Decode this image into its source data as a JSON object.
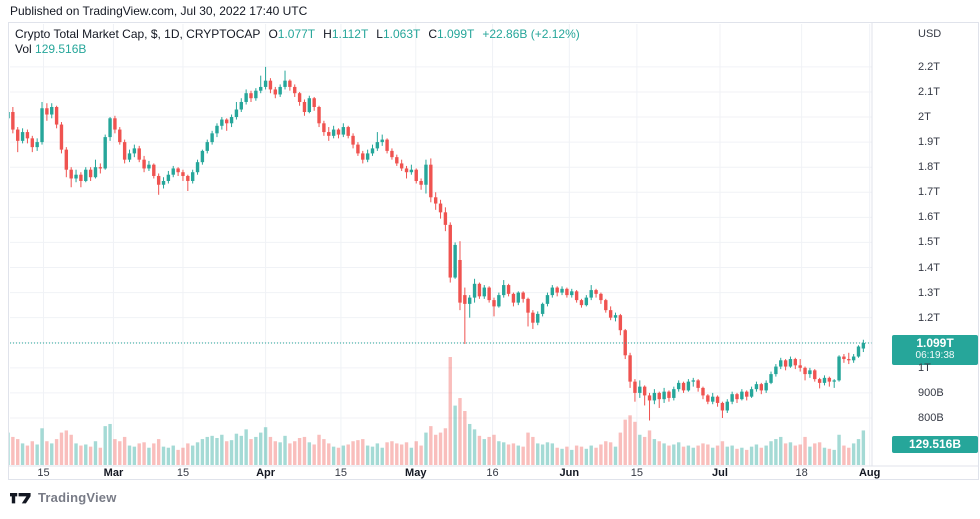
{
  "page": {
    "published_line": "Published on TradingView.com, Jul 30, 2022 17:40 UTC",
    "watermark_text": "TradingView"
  },
  "legend": {
    "title": "Crypto Total Market Cap, $, 1D, CRYPTOCAP",
    "o_label": "O",
    "o": "1.077T",
    "h_label": "H",
    "h": "1.112T",
    "l_label": "L",
    "l": "1.063T",
    "c_label": "C",
    "c": "1.099T",
    "change": "+22.86B (+2.12%)",
    "vol_label": "Vol",
    "vol_value": "129.516B"
  },
  "badges": {
    "price": "1.099T",
    "countdown": "06:19:38",
    "volume": "129.516B"
  },
  "colors": {
    "up": "#26a69a",
    "down": "#ef5350",
    "vol_up": "rgba(38,166,154,0.42)",
    "vol_down": "rgba(239,83,80,0.38)",
    "grid": "#f0f2f6",
    "axis_text": "#363a45",
    "dark_text": "#131722",
    "badge": "#26a69a",
    "dotted_line": "#26a69a",
    "border": "#e0e3eb",
    "watermark_gray": "#787b86"
  },
  "chart_data": {
    "type": "candlestick",
    "title": "Crypto Total Market Cap",
    "currency": "$",
    "interval": "1D",
    "symbol": "CRYPTOCAP",
    "units": "billions of USD",
    "last_candle": {
      "open": "1.077T",
      "high": "1.112T",
      "low": "1.063T",
      "close": "1.099T",
      "change": "+22.86B (+2.12%)",
      "volume": "129.516B"
    },
    "current_price": 1099,
    "countdown": "06:19:38",
    "grid": true,
    "y_axis": {
      "title": "USD",
      "range_visible": [
        760,
        2310
      ],
      "ticks": [
        {
          "label": "2.2T",
          "value": 2200
        },
        {
          "label": "2.1T",
          "value": 2100
        },
        {
          "label": "2T",
          "value": 2000
        },
        {
          "label": "1.9T",
          "value": 1900
        },
        {
          "label": "1.8T",
          "value": 1800
        },
        {
          "label": "1.7T",
          "value": 1700
        },
        {
          "label": "1.6T",
          "value": 1600
        },
        {
          "label": "1.5T",
          "value": 1500
        },
        {
          "label": "1.4T",
          "value": 1400
        },
        {
          "label": "1.3T",
          "value": 1300
        },
        {
          "label": "1.2T",
          "value": 1200
        },
        {
          "label": "",
          "value": 1100
        },
        {
          "label": "1T",
          "value": 1000
        },
        {
          "label": "900B",
          "value": 900
        },
        {
          "label": "800B",
          "value": 800
        }
      ]
    },
    "x_axis": {
      "ticks": [
        {
          "label": "15",
          "i": 7.3,
          "bold": false
        },
        {
          "label": "Mar",
          "i": 21.7,
          "bold": true
        },
        {
          "label": "15",
          "i": 36,
          "bold": false
        },
        {
          "label": "Apr",
          "i": 53,
          "bold": true
        },
        {
          "label": "15",
          "i": 68.5,
          "bold": false
        },
        {
          "label": "May",
          "i": 83.9,
          "bold": true
        },
        {
          "label": "16",
          "i": 99.7,
          "bold": false
        },
        {
          "label": "Jun",
          "i": 115.5,
          "bold": true
        },
        {
          "label": "15",
          "i": 129.4,
          "bold": false
        },
        {
          "label": "Jul",
          "i": 146.5,
          "bold": true
        },
        {
          "label": "18",
          "i": 163.3,
          "bold": false
        },
        {
          "label": "Aug",
          "i": 177.3,
          "bold": true
        }
      ]
    },
    "volume_scale_note": "v is relative bar height, 100 = tallest spike",
    "candles": [
      [
        1995,
        2065,
        1950,
        2020,
        30
      ],
      [
        2020,
        2040,
        1935,
        1950,
        26
      ],
      [
        1950,
        1960,
        1860,
        1905,
        24
      ],
      [
        1905,
        1955,
        1895,
        1940,
        20
      ],
      [
        1940,
        1950,
        1895,
        1915,
        18
      ],
      [
        1915,
        1925,
        1860,
        1880,
        22
      ],
      [
        1880,
        1915,
        1865,
        1900,
        19
      ],
      [
        1900,
        2060,
        1890,
        2035,
        34
      ],
      [
        2035,
        2055,
        1985,
        2010,
        22
      ],
      [
        2010,
        2055,
        1995,
        2040,
        20
      ],
      [
        2040,
        2045,
        1955,
        1970,
        24
      ],
      [
        1970,
        1980,
        1855,
        1870,
        30
      ],
      [
        1870,
        1880,
        1760,
        1790,
        32
      ],
      [
        1790,
        1800,
        1720,
        1755,
        28
      ],
      [
        1755,
        1790,
        1740,
        1770,
        20
      ],
      [
        1770,
        1780,
        1720,
        1745,
        18
      ],
      [
        1745,
        1800,
        1740,
        1790,
        19
      ],
      [
        1790,
        1800,
        1745,
        1760,
        17
      ],
      [
        1760,
        1830,
        1755,
        1800,
        22
      ],
      [
        1800,
        1815,
        1775,
        1795,
        16
      ],
      [
        1795,
        1930,
        1790,
        1920,
        36
      ],
      [
        1920,
        2000,
        1905,
        1995,
        38
      ],
      [
        1995,
        2005,
        1935,
        1950,
        24
      ],
      [
        1950,
        1960,
        1890,
        1900,
        22
      ],
      [
        1900,
        1910,
        1815,
        1830,
        26
      ],
      [
        1830,
        1870,
        1820,
        1855,
        18
      ],
      [
        1855,
        1890,
        1840,
        1875,
        17
      ],
      [
        1875,
        1885,
        1820,
        1830,
        20
      ],
      [
        1830,
        1845,
        1780,
        1795,
        21
      ],
      [
        1795,
        1825,
        1785,
        1810,
        16
      ],
      [
        1810,
        1815,
        1755,
        1765,
        20
      ],
      [
        1765,
        1775,
        1690,
        1730,
        24
      ],
      [
        1730,
        1760,
        1715,
        1745,
        17
      ],
      [
        1745,
        1785,
        1735,
        1770,
        16
      ],
      [
        1770,
        1805,
        1760,
        1795,
        18
      ],
      [
        1795,
        1800,
        1765,
        1780,
        14
      ],
      [
        1780,
        1790,
        1745,
        1765,
        16
      ],
      [
        1765,
        1770,
        1705,
        1745,
        20
      ],
      [
        1745,
        1790,
        1735,
        1780,
        18
      ],
      [
        1780,
        1830,
        1770,
        1820,
        21
      ],
      [
        1820,
        1870,
        1810,
        1865,
        24
      ],
      [
        1865,
        1910,
        1855,
        1900,
        26
      ],
      [
        1900,
        1945,
        1890,
        1935,
        27
      ],
      [
        1935,
        1975,
        1920,
        1965,
        25
      ],
      [
        1965,
        2000,
        1950,
        1990,
        28
      ],
      [
        1990,
        1995,
        1945,
        1975,
        22
      ],
      [
        1975,
        2010,
        1960,
        2000,
        23
      ],
      [
        2000,
        2060,
        1990,
        2030,
        29
      ],
      [
        2030,
        2075,
        2020,
        2060,
        27
      ],
      [
        2060,
        2110,
        2050,
        2095,
        33
      ],
      [
        2095,
        2105,
        2060,
        2075,
        24
      ],
      [
        2075,
        2115,
        2065,
        2105,
        26
      ],
      [
        2105,
        2165,
        2095,
        2120,
        30
      ],
      [
        2120,
        2200,
        2110,
        2145,
        35
      ],
      [
        2145,
        2155,
        2095,
        2110,
        26
      ],
      [
        2110,
        2120,
        2075,
        2090,
        22
      ],
      [
        2090,
        2130,
        2080,
        2120,
        21
      ],
      [
        2120,
        2185,
        2110,
        2145,
        27
      ],
      [
        2145,
        2150,
        2105,
        2120,
        20
      ],
      [
        2120,
        2130,
        2080,
        2095,
        22
      ],
      [
        2095,
        2100,
        2045,
        2060,
        25
      ],
      [
        2060,
        2070,
        2005,
        2020,
        26
      ],
      [
        2020,
        2085,
        2015,
        2075,
        21
      ],
      [
        2075,
        2080,
        2025,
        2040,
        19
      ],
      [
        2040,
        2045,
        1960,
        1975,
        28
      ],
      [
        1975,
        1985,
        1925,
        1940,
        24
      ],
      [
        1940,
        1960,
        1905,
        1925,
        20
      ],
      [
        1925,
        1965,
        1915,
        1950,
        17
      ],
      [
        1950,
        1955,
        1915,
        1930,
        16
      ],
      [
        1930,
        1975,
        1920,
        1960,
        18
      ],
      [
        1960,
        1965,
        1915,
        1925,
        19
      ],
      [
        1925,
        1935,
        1875,
        1890,
        22
      ],
      [
        1890,
        1900,
        1845,
        1855,
        23
      ],
      [
        1855,
        1865,
        1815,
        1830,
        24
      ],
      [
        1830,
        1870,
        1820,
        1855,
        18
      ],
      [
        1855,
        1890,
        1845,
        1875,
        17
      ],
      [
        1875,
        1940,
        1865,
        1900,
        20
      ],
      [
        1900,
        1930,
        1885,
        1910,
        16
      ],
      [
        1910,
        1915,
        1855,
        1865,
        21
      ],
      [
        1865,
        1875,
        1830,
        1840,
        22
      ],
      [
        1840,
        1850,
        1805,
        1815,
        20
      ],
      [
        1815,
        1830,
        1785,
        1795,
        19
      ],
      [
        1795,
        1805,
        1755,
        1780,
        21
      ],
      [
        1780,
        1810,
        1770,
        1790,
        16
      ],
      [
        1790,
        1795,
        1735,
        1745,
        22
      ],
      [
        1745,
        1755,
        1710,
        1730,
        18
      ],
      [
        1730,
        1830,
        1695,
        1810,
        30
      ],
      [
        1810,
        1835,
        1660,
        1680,
        36
      ],
      [
        1680,
        1700,
        1630,
        1655,
        28
      ],
      [
        1655,
        1670,
        1595,
        1620,
        30
      ],
      [
        1620,
        1640,
        1545,
        1570,
        34
      ],
      [
        1570,
        1580,
        1340,
        1360,
        100
      ],
      [
        1360,
        1500,
        1355,
        1490,
        55
      ],
      [
        1430,
        1505,
        1230,
        1260,
        62
      ],
      [
        1290,
        1320,
        1095,
        1255,
        50
      ],
      [
        1255,
        1290,
        1200,
        1280,
        38
      ],
      [
        1280,
        1355,
        1260,
        1335,
        33
      ],
      [
        1335,
        1340,
        1275,
        1285,
        27
      ],
      [
        1285,
        1330,
        1275,
        1320,
        24
      ],
      [
        1320,
        1325,
        1260,
        1270,
        26
      ],
      [
        1270,
        1280,
        1205,
        1245,
        28
      ],
      [
        1245,
        1300,
        1240,
        1290,
        22
      ],
      [
        1290,
        1350,
        1280,
        1330,
        21
      ],
      [
        1330,
        1335,
        1285,
        1295,
        19
      ],
      [
        1295,
        1300,
        1245,
        1260,
        20
      ],
      [
        1260,
        1305,
        1250,
        1300,
        18
      ],
      [
        1300,
        1305,
        1260,
        1275,
        17
      ],
      [
        1275,
        1280,
        1165,
        1220,
        30
      ],
      [
        1220,
        1230,
        1155,
        1180,
        26
      ],
      [
        1180,
        1225,
        1170,
        1215,
        20
      ],
      [
        1215,
        1260,
        1205,
        1255,
        19
      ],
      [
        1255,
        1300,
        1245,
        1290,
        21
      ],
      [
        1290,
        1330,
        1280,
        1320,
        20
      ],
      [
        1320,
        1325,
        1285,
        1300,
        16
      ],
      [
        1300,
        1325,
        1290,
        1315,
        15
      ],
      [
        1315,
        1320,
        1280,
        1290,
        17
      ],
      [
        1290,
        1315,
        1280,
        1305,
        14
      ],
      [
        1305,
        1310,
        1260,
        1270,
        18
      ],
      [
        1270,
        1275,
        1240,
        1250,
        17
      ],
      [
        1250,
        1290,
        1245,
        1280,
        15
      ],
      [
        1280,
        1330,
        1270,
        1310,
        18
      ],
      [
        1310,
        1315,
        1280,
        1295,
        16
      ],
      [
        1295,
        1300,
        1255,
        1270,
        19
      ],
      [
        1270,
        1275,
        1220,
        1230,
        22
      ],
      [
        1230,
        1245,
        1190,
        1200,
        21
      ],
      [
        1200,
        1220,
        1185,
        1210,
        17
      ],
      [
        1210,
        1215,
        1130,
        1150,
        30
      ],
      [
        1150,
        1155,
        1035,
        1050,
        42
      ],
      [
        1050,
        1060,
        920,
        945,
        46
      ],
      [
        945,
        955,
        865,
        900,
        40
      ],
      [
        900,
        950,
        880,
        925,
        28
      ],
      [
        925,
        930,
        850,
        890,
        26
      ],
      [
        890,
        900,
        790,
        870,
        32
      ],
      [
        870,
        915,
        855,
        900,
        24
      ],
      [
        900,
        905,
        840,
        875,
        22
      ],
      [
        875,
        920,
        860,
        905,
        20
      ],
      [
        905,
        910,
        865,
        880,
        18
      ],
      [
        880,
        925,
        870,
        915,
        19
      ],
      [
        915,
        950,
        905,
        940,
        21
      ],
      [
        940,
        945,
        900,
        910,
        17
      ],
      [
        910,
        955,
        905,
        945,
        18
      ],
      [
        945,
        960,
        925,
        950,
        16
      ],
      [
        950,
        955,
        905,
        920,
        18
      ],
      [
        920,
        925,
        875,
        890,
        20
      ],
      [
        890,
        895,
        855,
        865,
        19
      ],
      [
        865,
        900,
        855,
        885,
        16
      ],
      [
        885,
        890,
        845,
        860,
        18
      ],
      [
        860,
        865,
        800,
        830,
        22
      ],
      [
        830,
        875,
        820,
        865,
        17
      ],
      [
        865,
        905,
        855,
        895,
        18
      ],
      [
        895,
        900,
        860,
        875,
        15
      ],
      [
        875,
        915,
        870,
        905,
        16
      ],
      [
        905,
        910,
        870,
        885,
        14
      ],
      [
        885,
        925,
        880,
        915,
        17
      ],
      [
        915,
        945,
        905,
        935,
        19
      ],
      [
        935,
        940,
        895,
        910,
        16
      ],
      [
        910,
        950,
        900,
        940,
        18
      ],
      [
        940,
        985,
        935,
        975,
        22
      ],
      [
        975,
        1015,
        965,
        1005,
        24
      ],
      [
        1005,
        1040,
        995,
        1030,
        26
      ],
      [
        1030,
        1035,
        990,
        1005,
        20
      ],
      [
        1005,
        1045,
        1000,
        1035,
        21
      ],
      [
        1035,
        1040,
        995,
        1010,
        18
      ],
      [
        1010,
        1035,
        985,
        1000,
        19
      ],
      [
        1000,
        1005,
        950,
        975,
        26
      ],
      [
        975,
        1000,
        960,
        990,
        17
      ],
      [
        990,
        995,
        945,
        955,
        20
      ],
      [
        955,
        960,
        918,
        940,
        21
      ],
      [
        940,
        970,
        930,
        960,
        16
      ],
      [
        960,
        965,
        925,
        945,
        15
      ],
      [
        945,
        955,
        920,
        950,
        14
      ],
      [
        950,
        1050,
        945,
        1045,
        28
      ],
      [
        1045,
        1055,
        1020,
        1035,
        18
      ],
      [
        1035,
        1060,
        1015,
        1030,
        16
      ],
      [
        1030,
        1055,
        1020,
        1045,
        20
      ],
      [
        1045,
        1090,
        1040,
        1085,
        24
      ],
      [
        1077,
        1112,
        1063,
        1099,
        32
      ]
    ]
  }
}
